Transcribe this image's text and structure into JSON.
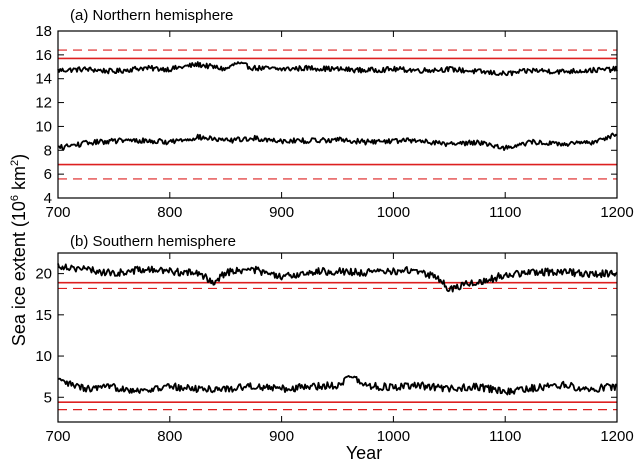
{
  "figure": {
    "ylabel_main": "Sea ice extent (10",
    "ylabel_sup": "6",
    "ylabel_unit": " km",
    "ylabel_sup2": "2",
    "ylabel_close": ")",
    "xlabel": "Year"
  },
  "chart_data": [
    {
      "type": "line",
      "title": "(a) Northern hemisphere",
      "xlim": [
        700,
        1200
      ],
      "ylim": [
        4,
        18
      ],
      "xticks": [
        700,
        800,
        900,
        1000,
        1100,
        1200
      ],
      "yticks": [
        4,
        6,
        8,
        10,
        12,
        14,
        16,
        18
      ],
      "grid": false,
      "series": [
        {
          "role": "maximum extent",
          "color": "#000000",
          "x": [
            700,
            725,
            750,
            775,
            800,
            825,
            850,
            860,
            875,
            900,
            925,
            950,
            975,
            1000,
            1025,
            1050,
            1075,
            1100,
            1125,
            1150,
            1175,
            1200
          ],
          "values": [
            14.7,
            14.8,
            14.6,
            14.9,
            14.8,
            15.2,
            14.8,
            15.3,
            14.9,
            14.8,
            14.9,
            14.8,
            14.7,
            14.8,
            14.7,
            14.8,
            14.6,
            14.4,
            14.7,
            14.6,
            14.7,
            14.8
          ]
        },
        {
          "role": "minimum extent",
          "color": "#000000",
          "x": [
            700,
            725,
            750,
            775,
            800,
            825,
            850,
            875,
            900,
            925,
            950,
            975,
            1000,
            1025,
            1050,
            1075,
            1100,
            1125,
            1150,
            1175,
            1200
          ],
          "values": [
            8.2,
            8.6,
            8.8,
            8.8,
            8.7,
            9.1,
            8.8,
            9.0,
            8.8,
            8.8,
            8.9,
            8.7,
            8.8,
            8.8,
            8.5,
            8.7,
            8.2,
            8.7,
            8.5,
            8.6,
            9.4
          ]
        }
      ],
      "reference_lines": [
        {
          "y": 16.4,
          "style": "dashed",
          "color": "#dd2020"
        },
        {
          "y": 15.7,
          "style": "solid",
          "color": "#dd2020"
        },
        {
          "y": 6.8,
          "style": "solid",
          "color": "#dd2020"
        },
        {
          "y": 5.6,
          "style": "dashed",
          "color": "#dd2020"
        }
      ]
    },
    {
      "type": "line",
      "title": "(b) Southern hemisphere",
      "xlim": [
        700,
        1200
      ],
      "ylim": [
        2,
        22.5
      ],
      "xticks": [
        700,
        800,
        900,
        1000,
        1100,
        1200
      ],
      "yticks": [
        5,
        10,
        15,
        20
      ],
      "grid": false,
      "series": [
        {
          "role": "maximum extent",
          "color": "#000000",
          "x": [
            700,
            725,
            750,
            775,
            800,
            825,
            840,
            850,
            875,
            900,
            925,
            950,
            975,
            1000,
            1020,
            1040,
            1050,
            1065,
            1080,
            1100,
            1125,
            1150,
            1175,
            1200
          ],
          "values": [
            21.0,
            20.5,
            20.0,
            20.5,
            20.3,
            20.0,
            19.0,
            20.2,
            20.5,
            19.5,
            20.2,
            20.3,
            20.1,
            20.3,
            20.4,
            19.5,
            18.0,
            18.8,
            19.0,
            19.9,
            20.1,
            20.3,
            19.9,
            20.1
          ]
        },
        {
          "role": "minimum extent",
          "color": "#000000",
          "x": [
            700,
            725,
            750,
            775,
            800,
            825,
            850,
            875,
            900,
            925,
            950,
            962,
            975,
            1000,
            1025,
            1050,
            1075,
            1100,
            1125,
            1150,
            1175,
            1200
          ],
          "values": [
            7.0,
            6.0,
            6.2,
            5.8,
            6.3,
            6.0,
            6.0,
            6.4,
            6.0,
            6.3,
            6.5,
            7.6,
            6.4,
            6.2,
            6.4,
            6.0,
            6.3,
            5.6,
            6.1,
            6.5,
            6.0,
            6.3
          ]
        }
      ],
      "reference_lines": [
        {
          "y": 18.9,
          "style": "solid",
          "color": "#dd2020"
        },
        {
          "y": 18.2,
          "style": "dashed",
          "color": "#dd2020"
        },
        {
          "y": 4.4,
          "style": "solid",
          "color": "#dd2020"
        },
        {
          "y": 3.5,
          "style": "dashed",
          "color": "#dd2020"
        }
      ]
    }
  ]
}
